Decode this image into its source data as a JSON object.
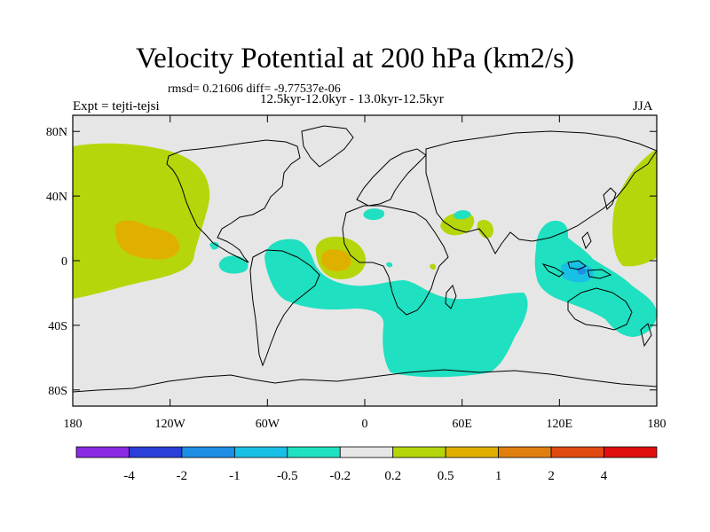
{
  "title": "Velocity Potential at 200 hPa (km2/s)",
  "stats": "rmsd= 0.21606 diff= -9.77537e-06",
  "left_label": "Expt = tejti-tejsi",
  "center_label": "12.5kyr-12.0kyr - 13.0kyr-12.5kyr",
  "right_label": "JJA",
  "map": {
    "lat_ticks": [
      {
        "label": "80N",
        "value": 80
      },
      {
        "label": "40N",
        "value": 40
      },
      {
        "label": "0",
        "value": 0
      },
      {
        "label": "40S",
        "value": -40
      },
      {
        "label": "80S",
        "value": -80
      }
    ],
    "lon_ticks": [
      {
        "label": "180",
        "value": -180
      },
      {
        "label": "120W",
        "value": -120
      },
      {
        "label": "60W",
        "value": -60
      },
      {
        "label": "0",
        "value": 0
      },
      {
        "label": "60E",
        "value": 60
      },
      {
        "label": "120E",
        "value": 120
      },
      {
        "label": "180",
        "value": 180
      }
    ],
    "background_color": "#e6e6e6"
  },
  "colorbar": {
    "boundaries": [
      "-4",
      "-2",
      "-1",
      "-0.5",
      "-0.2",
      "0.2",
      "0.5",
      "1",
      "2",
      "4"
    ],
    "colors": [
      "#8a2be2",
      "#2b3fd9",
      "#1f8fe6",
      "#19c0e6",
      "#1fe0c0",
      "#e6e6e6",
      "#b5d60a",
      "#e0b000",
      "#e07f10",
      "#e04a10",
      "#e01010"
    ]
  },
  "anomaly_colors": {
    "neg_02_05": "#1fe0c0",
    "neg_05_1": "#19c0e6",
    "pos_02_05": "#b5d60a",
    "pos_05_1": "#e0b000"
  }
}
